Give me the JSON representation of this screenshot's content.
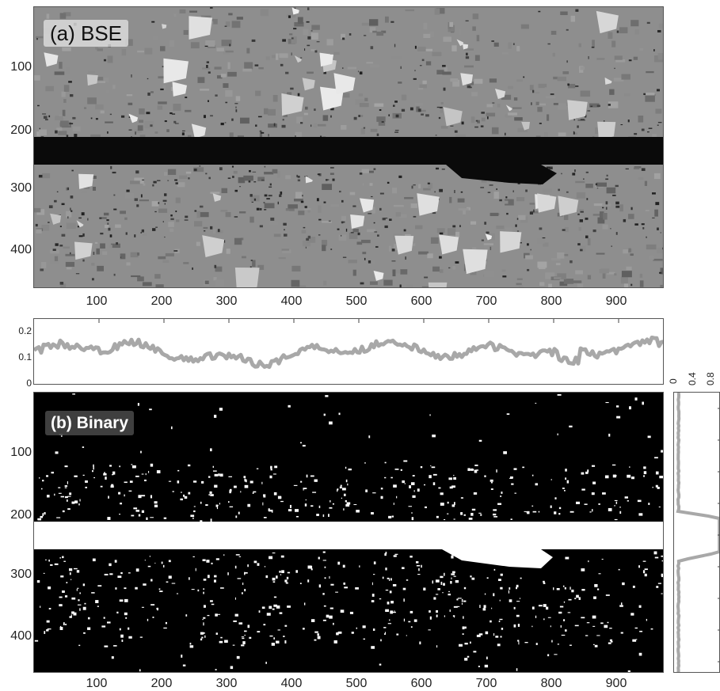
{
  "panel_a": {
    "label": "(a) BSE",
    "y_ticks": [
      "100",
      "200",
      "300",
      "400"
    ],
    "x_ticks": [
      "100",
      "200",
      "300",
      "400",
      "500",
      "600",
      "700",
      "800",
      "900"
    ]
  },
  "profile": {
    "y_ticks": [
      "0.2",
      "0.1",
      "0"
    ]
  },
  "panel_b": {
    "label": "(b) Binary",
    "y_ticks": [
      "100",
      "200",
      "300",
      "400"
    ],
    "x_ticks": [
      "100",
      "200",
      "300",
      "400",
      "500",
      "600",
      "700",
      "800",
      "900"
    ]
  },
  "side_profile": {
    "x_ticks": [
      "0",
      "0.4",
      "0.8"
    ]
  },
  "colors": {
    "bse_background": "#8e8e8e",
    "bse_dark_band": "#0a0a0a",
    "binary_background": "#000000",
    "binary_band": "#ffffff",
    "profile_line": "#a8a8a8"
  }
}
